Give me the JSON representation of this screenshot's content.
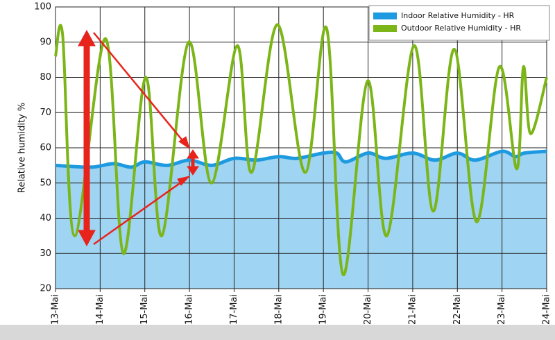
{
  "chart_data": {
    "type": "line",
    "y_label": "Relative humidity %",
    "xlim": [
      13,
      24
    ],
    "xticks": [
      {
        "value": 13,
        "label": "13-Mai"
      },
      {
        "value": 14,
        "label": "14-Mai"
      },
      {
        "value": 15,
        "label": "15-Mai"
      },
      {
        "value": 16,
        "label": "16-Mai"
      },
      {
        "value": 17,
        "label": "17-Mai"
      },
      {
        "value": 18,
        "label": "18-Mai"
      },
      {
        "value": 19,
        "label": "19-Mai"
      },
      {
        "value": 20,
        "label": "20-Mai"
      },
      {
        "value": 21,
        "label": "21-Mai"
      },
      {
        "value": 22,
        "label": "22-Mai"
      },
      {
        "value": 23,
        "label": "23-Mai"
      },
      {
        "value": 24,
        "label": "24-Mai"
      }
    ],
    "ylim": [
      20,
      100
    ],
    "yticks": [
      20,
      30,
      40,
      50,
      60,
      70,
      80,
      90,
      100
    ],
    "grid": true,
    "legend": "top-right",
    "series": [
      {
        "name": "Indoor Relative Humidity - HR",
        "color": "#1e9be0",
        "fill": "#9fd4f2",
        "x": [
          13,
          13.8,
          14.3,
          14.7,
          15,
          15.5,
          16,
          16.5,
          17,
          17.5,
          18,
          18.4,
          19,
          19.3,
          19.5,
          20,
          20.4,
          21,
          21.5,
          22,
          22.4,
          23,
          23.3,
          23.5,
          24
        ],
        "values": [
          55,
          54.5,
          55.5,
          54.5,
          56,
          55,
          56.5,
          55,
          57,
          56.5,
          57.5,
          57,
          58.5,
          58.5,
          56,
          58.5,
          57,
          58.5,
          56.5,
          58.5,
          56.5,
          59,
          57.5,
          58.5,
          59
        ]
      },
      {
        "name": "Outdoor Relative Humidity - HR",
        "color": "#7cb518",
        "x": [
          13,
          13.16,
          13.43,
          14.12,
          14.52,
          15.02,
          15.38,
          15.98,
          16.49,
          17.07,
          17.39,
          17.97,
          18.59,
          19.07,
          19.44,
          19.99,
          20.42,
          21.03,
          21.46,
          21.93,
          22.43,
          22.94,
          23.33,
          23.48,
          23.64,
          24
        ],
        "values": [
          86,
          92,
          35,
          91,
          30,
          80,
          35,
          90,
          50,
          89,
          53,
          95,
          53,
          94,
          24,
          79,
          35,
          89,
          42,
          88,
          39,
          83,
          54,
          83,
          64,
          80
        ]
      }
    ]
  }
}
